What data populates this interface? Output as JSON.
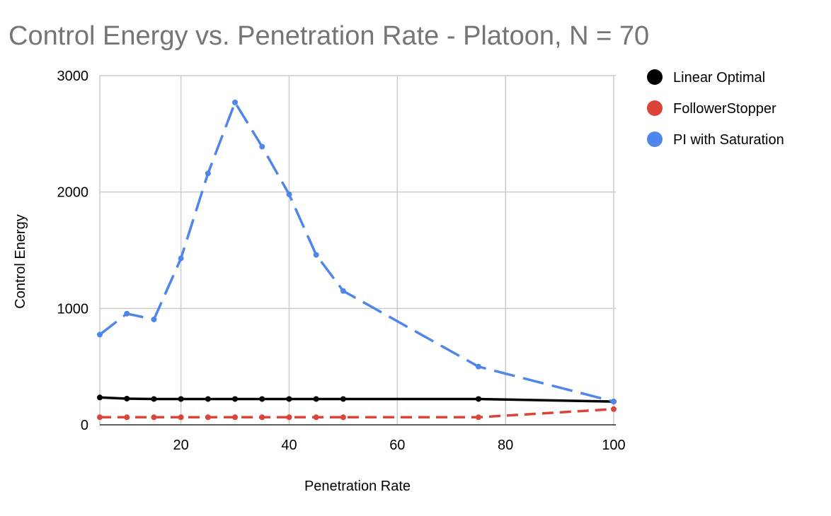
{
  "chart_data": {
    "type": "line",
    "title": "Control Energy vs. Penetration Rate - Platoon, N = 70",
    "xlabel": "Penetration Rate",
    "ylabel": "Control Energy",
    "xlim": [
      5,
      100
    ],
    "ylim": [
      0,
      3000
    ],
    "xticks": [
      20,
      40,
      60,
      80,
      100
    ],
    "yticks": [
      0,
      1000,
      2000,
      3000
    ],
    "x_tick_labels": [
      "20",
      "40",
      "60",
      "80",
      "100"
    ],
    "y_tick_labels": [
      "0",
      "1000",
      "2000",
      "3000"
    ],
    "grid": true,
    "legend_position": "right",
    "x": [
      5,
      10,
      15,
      20,
      25,
      30,
      35,
      40,
      45,
      50,
      75,
      100
    ],
    "series": [
      {
        "name": "Linear Optimal",
        "color": "#000000",
        "dash": "solid",
        "values": [
          235,
          225,
          222,
          222,
          222,
          222,
          222,
          222,
          222,
          222,
          222,
          200
        ]
      },
      {
        "name": "FollowerStopper",
        "color": "#db4437",
        "dash": "dashed",
        "values": [
          65,
          65,
          65,
          65,
          65,
          65,
          65,
          65,
          65,
          65,
          65,
          135
        ]
      },
      {
        "name": "PI with Saturation",
        "color": "#4f86ec",
        "dash": "dashed",
        "values": [
          775,
          955,
          905,
          1430,
          2160,
          2770,
          2390,
          1980,
          1460,
          1150,
          500,
          200
        ]
      }
    ]
  }
}
